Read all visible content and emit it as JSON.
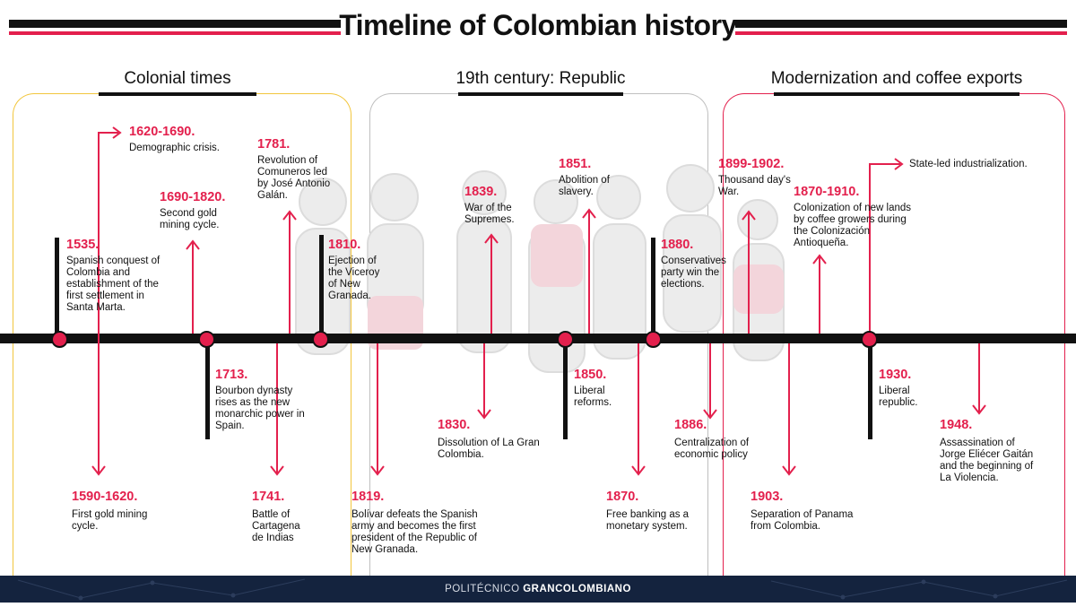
{
  "title": "Timeline of Colombian history",
  "eras": [
    {
      "label": "Colonial times",
      "color": "#f2c63d"
    },
    {
      "label": "19th century: Republic",
      "color": "#bfbfbf"
    },
    {
      "label": "Modernization and coffee exports",
      "color": "#e3204d"
    }
  ],
  "events": [
    {
      "year": "1535.",
      "text": "Spanish conquest of Colombia and establishment of the first settlement in Santa Marta."
    },
    {
      "year": "1620-1690.",
      "text": "Demographic crisis."
    },
    {
      "year": "1690-1820.",
      "text": "Second gold mining cycle."
    },
    {
      "year": "1781.",
      "text": "Revolution of Comuneros led by José Antonio Galán."
    },
    {
      "year": "1810.",
      "text": "Ejection of the Viceroy of New Granada."
    },
    {
      "year": "1590-1620.",
      "text": "First gold mining cycle."
    },
    {
      "year": "1713.",
      "text": "Bourbon dynasty rises as the new monarchic power in Spain."
    },
    {
      "year": "1741.",
      "text": "Battle of Cartagena de Indias"
    },
    {
      "year": "1819.",
      "text": "Bolívar defeats the Spanish army and becomes the first president of the Republic of New Granada."
    },
    {
      "year": "1839.",
      "text": "War of the Supremes."
    },
    {
      "year": "1851.",
      "text": "Abolition of slavery."
    },
    {
      "year": "1880.",
      "text": "Conservatives party win the elections."
    },
    {
      "year": "1830.",
      "text": "Dissolution of La Gran Colombia."
    },
    {
      "year": "1850.",
      "text": "Liberal reforms."
    },
    {
      "year": "1870.",
      "text": "Free banking as a monetary system."
    },
    {
      "year": "1886.",
      "text": "Centralization of economic policy"
    },
    {
      "year": "1899-1902.",
      "text": "Thousand day's War."
    },
    {
      "year": "1870-1910.",
      "text": " Colonization of new lands by coffee growers during the Colonización Antioqueña."
    },
    {
      "year": "",
      "text": "State-led industrialization."
    },
    {
      "year": "1903.",
      "text": "Separation of Panama from Colombia."
    },
    {
      "year": "1930.",
      "text": "Liberal republic."
    },
    {
      "year": "1948.",
      "text": "Assassination of Jorge Eliécer Gaitán and the beginning of La Violencia."
    }
  ],
  "footer": {
    "left": "POLITÉCNICO ",
    "right": "GRANCOLOMBIANO"
  }
}
